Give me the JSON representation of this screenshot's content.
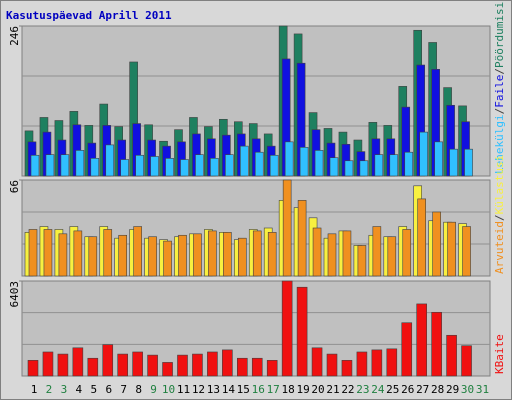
{
  "chart_data": [
    {
      "type": "bar",
      "title": "Kasutuspäevad Aprill 2011",
      "ylim": [
        0,
        246
      ],
      "yticks": [
        246
      ],
      "separator": "/",
      "series": [
        {
          "name": "Pöördumisi",
          "color": "#1e8060",
          "values": [
            74,
            96,
            91,
            106,
            83,
            118,
            81,
            187,
            84,
            57,
            76,
            96,
            81,
            93,
            89,
            86,
            69,
            246,
            233,
            104,
            78,
            72,
            59,
            88,
            83,
            147,
            239,
            219,
            145,
            115,
            null
          ]
        },
        {
          "name": "Faile",
          "color": "#1010e0",
          "values": [
            56,
            72,
            59,
            84,
            54,
            83,
            59,
            86,
            59,
            49,
            56,
            69,
            61,
            67,
            69,
            61,
            49,
            192,
            185,
            76,
            54,
            52,
            40,
            61,
            61,
            113,
            182,
            175,
            116,
            89,
            null
          ]
        },
        {
          "name": "Lehekülgi",
          "color": "#30c0ff",
          "values": [
            34,
            35,
            35,
            42,
            29,
            51,
            27,
            34,
            32,
            29,
            27,
            35,
            29,
            35,
            49,
            39,
            34,
            56,
            47,
            42,
            30,
            25,
            25,
            35,
            35,
            39,
            72,
            56,
            44,
            44,
            null
          ]
        }
      ]
    },
    {
      "type": "bar",
      "ylim": [
        0,
        66
      ],
      "yticks": [
        66
      ],
      "separator": "/",
      "series": [
        {
          "name": "Külastusi",
          "color": "#f8f040",
          "values": [
            30,
            34,
            32,
            34,
            27,
            34,
            26,
            32,
            26,
            25,
            27,
            29,
            32,
            30,
            25,
            32,
            33,
            52,
            47,
            40,
            26,
            31,
            21,
            28,
            27,
            34,
            62,
            38,
            37,
            36,
            null
          ]
        },
        {
          "name": "Arvuteid",
          "color": "#f09020",
          "values": [
            32,
            32,
            29,
            31,
            27,
            32,
            28,
            34,
            27,
            24,
            28,
            29,
            31,
            30,
            26,
            31,
            30,
            66,
            52,
            33,
            29,
            31,
            21,
            34,
            27,
            32,
            53,
            44,
            37,
            34,
            null
          ]
        }
      ]
    },
    {
      "type": "bar",
      "ylim": [
        0,
        6403
      ],
      "yticks": [
        6403
      ],
      "categories": [
        "1",
        "2",
        "3",
        "4",
        "5",
        "6",
        "7",
        "8",
        "9",
        "10",
        "11",
        "12",
        "13",
        "14",
        "15",
        "16",
        "17",
        "18",
        "19",
        "20",
        "21",
        "22",
        "23",
        "24",
        "25",
        "26",
        "27",
        "28",
        "29",
        "30",
        "31"
      ],
      "category_colors": [
        "#000000",
        "#208040",
        "#208040",
        "#000000",
        "#000000",
        "#000000",
        "#000000",
        "#000000",
        "#208040",
        "#208040",
        "#000000",
        "#000000",
        "#000000",
        "#000000",
        "#000000",
        "#208040",
        "#208040",
        "#000000",
        "#000000",
        "#000000",
        "#000000",
        "#000000",
        "#208040",
        "#208040",
        "#000000",
        "#000000",
        "#000000",
        "#000000",
        "#000000",
        "#208040",
        "#208040"
      ],
      "series": [
        {
          "name": "KBaite",
          "color": "#f01010",
          "values": [
            1056,
            1619,
            1478,
            1900,
            1197,
            2111,
            1478,
            1619,
            1408,
            915,
            1408,
            1478,
            1619,
            1760,
            1197,
            1197,
            1056,
            6403,
            5984,
            1900,
            1478,
            1056,
            1619,
            1760,
            1830,
            3590,
            4858,
            4294,
            2745,
            2041,
            null
          ]
        }
      ]
    }
  ]
}
